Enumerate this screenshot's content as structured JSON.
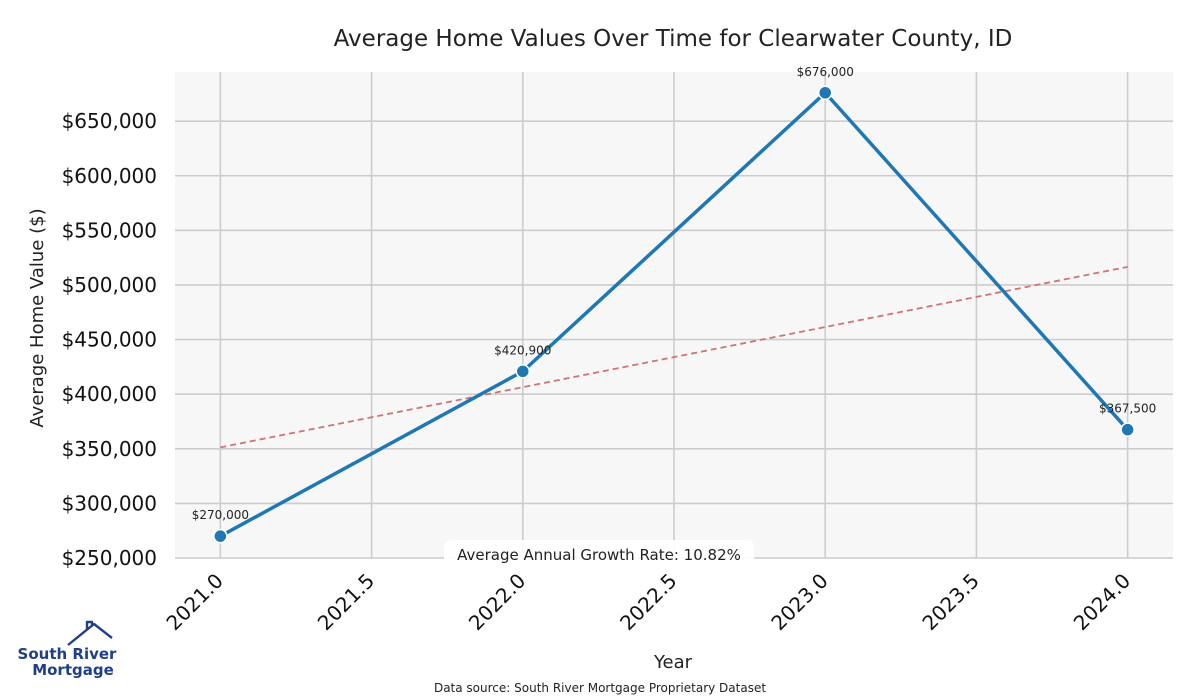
{
  "chart_data": {
    "type": "line",
    "title": "Average Home Values Over Time for Clearwater County, ID",
    "xlabel": "Year",
    "ylabel": "Average Home Value ($)",
    "xlim": [
      2020.85,
      2024.15
    ],
    "ylim": [
      250000,
      695000
    ],
    "x_ticks": [
      2021.0,
      2021.5,
      2022.0,
      2022.5,
      2023.0,
      2023.5,
      2024.0
    ],
    "x_tick_labels": [
      "2021.0",
      "2021.5",
      "2022.0",
      "2022.5",
      "2023.0",
      "2023.5",
      "2024.0"
    ],
    "y_ticks": [
      250000,
      300000,
      350000,
      400000,
      450000,
      500000,
      550000,
      600000,
      650000
    ],
    "y_tick_labels": [
      "$250,000",
      "$300,000",
      "$350,000",
      "$400,000",
      "$450,000",
      "$500,000",
      "$550,000",
      "$600,000",
      "$650,000"
    ],
    "grid": true,
    "series": [
      {
        "x": [
          2021,
          2022,
          2023,
          2024
        ],
        "values": [
          270000,
          420900,
          676000,
          367500
        ],
        "labels": [
          "$270,000",
          "$420,900",
          "$676,000",
          "$367,500"
        ],
        "color": "#1f77b4"
      }
    ],
    "trendline": {
      "x": [
        2021,
        2024
      ],
      "values": [
        351300,
        516600
      ],
      "color": "#cd7475",
      "style": "dashed"
    },
    "annotation": "Average Annual Growth Rate: 10.82%",
    "source": "Data source: South River Mortgage Proprietary Dataset",
    "background": "#f7f7f8",
    "grid_color": "#cccccc"
  },
  "logo": {
    "line1": "South River",
    "line2": "Mortgage",
    "color": "#1f3f86"
  }
}
